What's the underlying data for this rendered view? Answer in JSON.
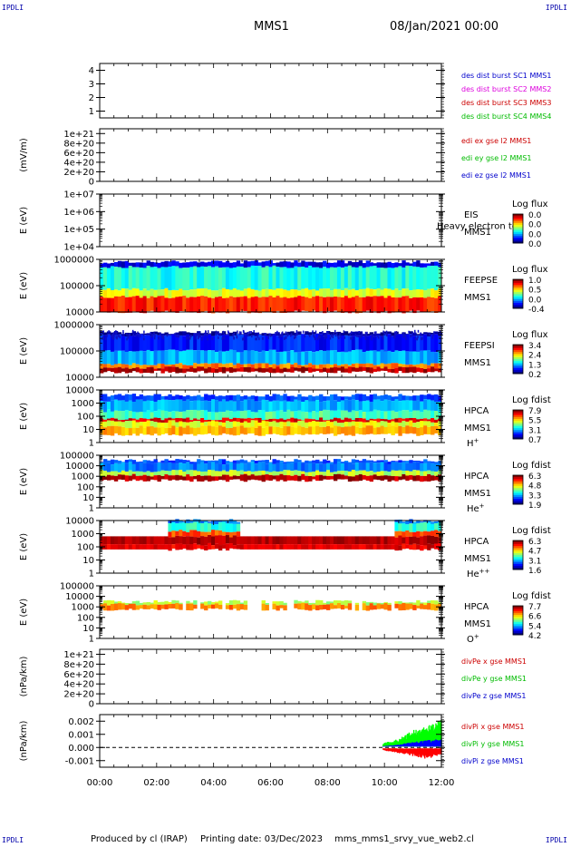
{
  "corner_label": "IPDLI",
  "header": {
    "title": "MMS1",
    "date": "08/Jan/2021 00:00"
  },
  "footer": {
    "produced": "Produced by cl (IRAP)",
    "printing": "Printing date: 03/Dec/2023",
    "script": "mms_mms1_srvy_vue_web2.cl"
  },
  "chart_data": {
    "type": "stacked-panels",
    "x_ticks": [
      "00:00",
      "02:00",
      "04:00",
      "06:00",
      "08:00",
      "10:00",
      "12:00"
    ],
    "x_range_hours": [
      0,
      12
    ],
    "panels": [
      {
        "id": "burst",
        "type": "line",
        "ylabel": "",
        "ticks": [
          "4",
          "3",
          "2",
          "1"
        ],
        "tick_values": [
          4,
          3,
          2,
          1
        ],
        "ylim": [
          0.5,
          4.5
        ],
        "legend": [
          {
            "text": "des dist burst SC1 MMS1",
            "color": "#0000cc"
          },
          {
            "text": "des dist burst SC2 MMS2",
            "color": "#dd00dd"
          },
          {
            "text": "des dist burst SC3 MMS3",
            "color": "#cc0000"
          },
          {
            "text": "des dist burst SC4 MMS4",
            "color": "#00bb00"
          }
        ]
      },
      {
        "id": "edi",
        "type": "line",
        "ylabel": "(mV/m)",
        "ticks": [
          "1e+21",
          "8e+20",
          "6e+20",
          "4e+20",
          "2e+20",
          "0"
        ],
        "tick_values": [
          1e+21,
          8e+20,
          6e+20,
          4e+20,
          2e+20,
          0
        ],
        "ylim": [
          0,
          1.1e+21
        ],
        "zero_line": true,
        "legend": [
          {
            "text": "edi ex gse l2 MMS1",
            "color": "#cc0000"
          },
          {
            "text": "edi ey gse l2 MMS1",
            "color": "#00bb00"
          },
          {
            "text": "edi ez gse l2 MMS1",
            "color": "#0000cc"
          }
        ]
      },
      {
        "id": "eis",
        "type": "spectrogram",
        "ylabel": "E (eV)",
        "log": true,
        "ticks": [
          "1e+07",
          "1e+06",
          "1e+05",
          "1e+04"
        ],
        "tick_values": [
          10000000.0,
          1000000.0,
          100000.0,
          10000.0
        ],
        "labels": [
          "EIS",
          "MMS1"
        ],
        "overlay": "Heavy electron to",
        "cbar_title": "Log flux",
        "cbar_ticks": [
          "0.0",
          "0.0",
          "0.0",
          "0.0"
        ]
      },
      {
        "id": "feepse",
        "type": "spectrogram",
        "ylabel": "E (eV)",
        "log": true,
        "ticks": [
          "1000000",
          "100000",
          "10000"
        ],
        "tick_values": [
          1000000.0,
          100000.0,
          10000.0
        ],
        "labels": [
          "FEEPSE",
          "MMS1"
        ],
        "cbar_title": "Log flux",
        "cbar_ticks": [
          "1.0",
          "0.5",
          "0.0",
          "-0.4"
        ]
      },
      {
        "id": "feepsi",
        "type": "spectrogram",
        "ylabel": "E (eV)",
        "log": true,
        "ticks": [
          "1000000",
          "100000",
          "10000"
        ],
        "tick_values": [
          1000000.0,
          100000.0,
          10000.0
        ],
        "labels": [
          "FEEPSI",
          "MMS1"
        ],
        "cbar_title": "Log flux",
        "cbar_ticks": [
          "3.4",
          "2.4",
          "1.3",
          "0.2"
        ]
      },
      {
        "id": "hpca_h",
        "type": "spectrogram",
        "ylabel": "E (eV)",
        "log": true,
        "ticks": [
          "10000",
          "1000",
          "100",
          "10",
          "1"
        ],
        "tick_values": [
          10000.0,
          1000.0,
          100.0,
          10,
          1
        ],
        "labels": [
          "HPCA",
          "MMS1"
        ],
        "species": "H",
        "species_sup": "+",
        "cbar_title": "Log fdist",
        "cbar_ticks": [
          "7.9",
          "5.5",
          "3.1",
          "0.7"
        ]
      },
      {
        "id": "hpca_he",
        "type": "spectrogram",
        "ylabel": "E (eV)",
        "log": true,
        "ticks": [
          "100000",
          "10000",
          "1000",
          "100",
          "10",
          "1"
        ],
        "tick_values": [
          100000.0,
          10000.0,
          1000.0,
          100.0,
          10,
          1
        ],
        "labels": [
          "HPCA",
          "MMS1"
        ],
        "species": "He",
        "species_sup": "+",
        "cbar_title": "Log fdist",
        "cbar_ticks": [
          "6.3",
          "4.8",
          "3.3",
          "1.9"
        ]
      },
      {
        "id": "hpca_hepp",
        "type": "spectrogram",
        "ylabel": "E (eV)",
        "log": true,
        "ticks": [
          "10000",
          "1000",
          "100",
          "10",
          "1"
        ],
        "tick_values": [
          10000.0,
          1000.0,
          100.0,
          10,
          1
        ],
        "labels": [
          "HPCA",
          "MMS1"
        ],
        "species": "He",
        "species_sup": "++",
        "cbar_title": "Log fdist",
        "cbar_ticks": [
          "6.3",
          "4.7",
          "3.1",
          "1.6"
        ]
      },
      {
        "id": "hpca_o",
        "type": "spectrogram",
        "ylabel": "E (eV)",
        "log": true,
        "ticks": [
          "100000",
          "10000",
          "1000",
          "100",
          "10",
          "1"
        ],
        "tick_values": [
          100000.0,
          10000.0,
          1000.0,
          100.0,
          10,
          1
        ],
        "labels": [
          "HPCA",
          "MMS1"
        ],
        "species": "O",
        "species_sup": "+",
        "cbar_title": "Log fdist",
        "cbar_ticks": [
          "7.7",
          "6.6",
          "5.4",
          "4.2"
        ]
      },
      {
        "id": "divpe",
        "type": "line",
        "ylabel": "(nPa/km)",
        "ticks": [
          "1e+21",
          "8e+20",
          "6e+20",
          "4e+20",
          "2e+20",
          "0"
        ],
        "tick_values": [
          1e+21,
          8e+20,
          6e+20,
          4e+20,
          2e+20,
          0
        ],
        "ylim": [
          0,
          1.1e+21
        ],
        "zero_line": true,
        "legend": [
          {
            "text": "divPe x gse MMS1",
            "color": "#cc0000"
          },
          {
            "text": "divPe y gse MMS1",
            "color": "#00bb00"
          },
          {
            "text": "divPe z gse MMS1",
            "color": "#0000cc"
          }
        ]
      },
      {
        "id": "divpi",
        "type": "line",
        "ylabel": "(nPa/km)",
        "ticks": [
          "0.002",
          "0.001",
          "0.000",
          "-0.001"
        ],
        "tick_values": [
          0.002,
          0.001,
          0.0,
          -0.001
        ],
        "ylim": [
          -0.0015,
          0.0025
        ],
        "zero_line": true,
        "legend": [
          {
            "text": "divPi x gse MMS1",
            "color": "#cc0000"
          },
          {
            "text": "divPi y gse MMS1",
            "color": "#00bb00"
          },
          {
            "text": "divPi z gse MMS1",
            "color": "#0000cc"
          }
        ],
        "series": [
          {
            "name": "divPi x gse MMS1",
            "color": "#ff0000",
            "x": [
              9.95,
              10.5,
              11.0,
              11.5,
              12.0
            ],
            "y": [
              -0.0002,
              -0.0004,
              -0.0006,
              -0.0008,
              -0.0005
            ]
          },
          {
            "name": "divPi y gse MMS1",
            "color": "#00ff00",
            "x": [
              9.95,
              10.5,
              11.0,
              11.5,
              12.0
            ],
            "y": [
              0.0003,
              0.0006,
              0.0012,
              0.0015,
              0.002
            ]
          },
          {
            "name": "divPi z gse MMS1",
            "color": "#0000ff",
            "x": [
              9.95,
              10.5,
              11.0,
              11.5,
              12.0
            ],
            "y": [
              0.0001,
              0.0002,
              0.0004,
              0.0005,
              0.0006
            ]
          }
        ]
      }
    ]
  }
}
